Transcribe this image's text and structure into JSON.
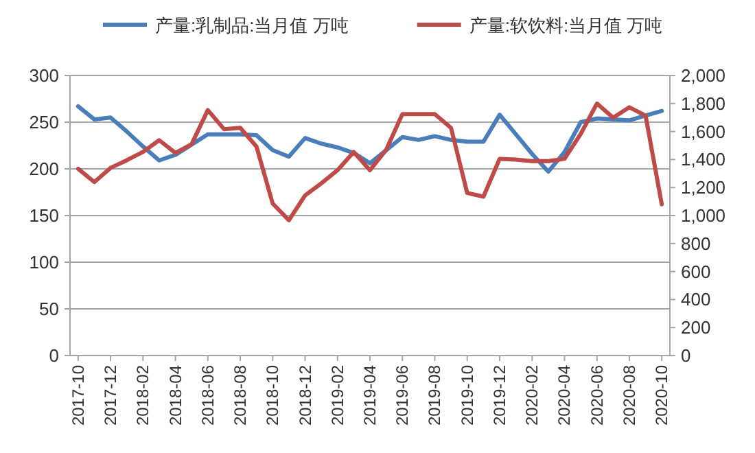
{
  "chart_data": {
    "type": "line",
    "categories": [
      "2017-10",
      null,
      "2017-12",
      null,
      "2018-02",
      null,
      "2018-04",
      null,
      "2018-06",
      null,
      "2018-08",
      null,
      "2018-10",
      null,
      "2018-12",
      null,
      "2019-02",
      null,
      "2019-04",
      null,
      "2019-06",
      null,
      "2019-08",
      null,
      "2019-10",
      null,
      "2019-12",
      null,
      "2020-02",
      null,
      "2020-04",
      null,
      "2020-06",
      null,
      "2020-08",
      null,
      "2020-10"
    ],
    "series": [
      {
        "name": "产量:乳制品:当月值 万吨",
        "color": "#4a7ebb",
        "values": [
          267,
          253,
          255,
          240,
          224,
          209,
          215,
          226,
          237,
          237,
          237,
          236,
          220,
          213,
          233,
          227,
          223,
          217,
          206,
          220,
          234,
          231,
          235,
          231,
          229,
          229,
          258,
          237,
          216,
          197,
          218,
          250,
          254,
          253,
          252,
          257,
          262
        ]
      },
      {
        "name": "产量:软饮料:当月值 万吨",
        "color": "#be4b48",
        "axis": "y2",
        "values": [
          1334,
          1239,
          1340,
          1395,
          1454,
          1538,
          1447,
          1509,
          1753,
          1617,
          1626,
          1493,
          1086,
          966,
          1144,
          1230,
          1324,
          1454,
          1324,
          1469,
          1724,
          1724,
          1724,
          1626,
          1161,
          1135,
          1405,
          1400,
          1388,
          1388,
          1405,
          1583,
          1800,
          1698,
          1773,
          1714,
          1080
        ]
      }
    ],
    "ylim": [
      0,
      300
    ],
    "yticks": [
      0,
      50,
      100,
      150,
      200,
      250,
      300
    ],
    "y2lim": [
      0,
      2000
    ],
    "y2ticks": [
      0,
      {
        "value": 200,
        "label": "200"
      },
      {
        "value": 400,
        "label": "400"
      },
      {
        "value": 600,
        "label": "600"
      },
      {
        "value": 800,
        "label": "800"
      },
      {
        "value": 1000,
        "label": "1,000"
      },
      {
        "value": 1200,
        "label": "1,200"
      },
      {
        "value": 1400,
        "label": "1,400"
      },
      {
        "value": 1600,
        "label": "1,600"
      },
      {
        "value": 1800,
        "label": "1,800"
      },
      {
        "value": 2000,
        "label": "2,000"
      }
    ],
    "grid": "y",
    "legend": "top",
    "marker": "none",
    "line_style": "solid"
  }
}
